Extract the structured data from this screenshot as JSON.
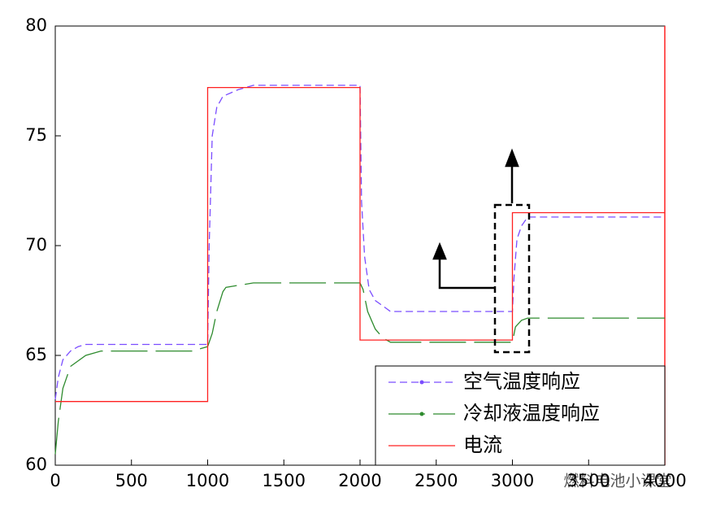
{
  "chart_data": {
    "type": "line",
    "xlim": [
      0,
      4000
    ],
    "xticks": [
      0,
      500,
      1000,
      1500,
      2000,
      2500,
      3000,
      3500,
      4000
    ],
    "ylim": [
      60,
      80
    ],
    "yticks": [
      60,
      65,
      70,
      75,
      80
    ],
    "legend": "lower right",
    "series": [
      {
        "name": "空气温度响应",
        "color": "#7b4dff",
        "style": "dashed",
        "x": [
          0,
          20,
          50,
          100,
          150,
          200,
          300,
          1000,
          1010,
          1030,
          1060,
          1100,
          1200,
          1300,
          2000,
          2010,
          2030,
          2060,
          2100,
          2200,
          3000,
          3010,
          3030,
          3060,
          3100,
          4000
        ],
        "values": [
          63,
          64,
          64.8,
          65.2,
          65.4,
          65.5,
          65.5,
          65.5,
          70,
          75,
          76.3,
          76.8,
          77.1,
          77.3,
          77.3,
          72,
          69.5,
          68,
          67.5,
          67,
          67,
          68.5,
          70.3,
          70.9,
          71.3,
          71.3
        ]
      },
      {
        "name": "冷却液温度响应",
        "color": "#2e8b2e",
        "style": "dashed",
        "x": [
          0,
          20,
          50,
          100,
          200,
          300,
          900,
          1000,
          1030,
          1060,
          1100,
          1120,
          1300,
          2000,
          2020,
          2050,
          2100,
          2150,
          2200,
          3000,
          3020,
          3060,
          3100,
          4000
        ],
        "values": [
          60.5,
          62,
          63.5,
          64.5,
          65,
          65.2,
          65.2,
          65.4,
          66,
          67,
          67.9,
          68.1,
          68.3,
          68.3,
          68,
          67,
          66.2,
          65.8,
          65.6,
          65.6,
          66.3,
          66.6,
          66.7,
          66.7
        ]
      },
      {
        "name": "电流",
        "color": "#ff2020",
        "style": "solid",
        "x": [
          0,
          1000,
          1000,
          2000,
          2000,
          3000,
          3000,
          4000
        ],
        "values": [
          62.9,
          62.9,
          77.2,
          77.2,
          65.7,
          65.7,
          71.5,
          71.5
        ]
      }
    ]
  },
  "watermark": "燃料电池小课堂"
}
